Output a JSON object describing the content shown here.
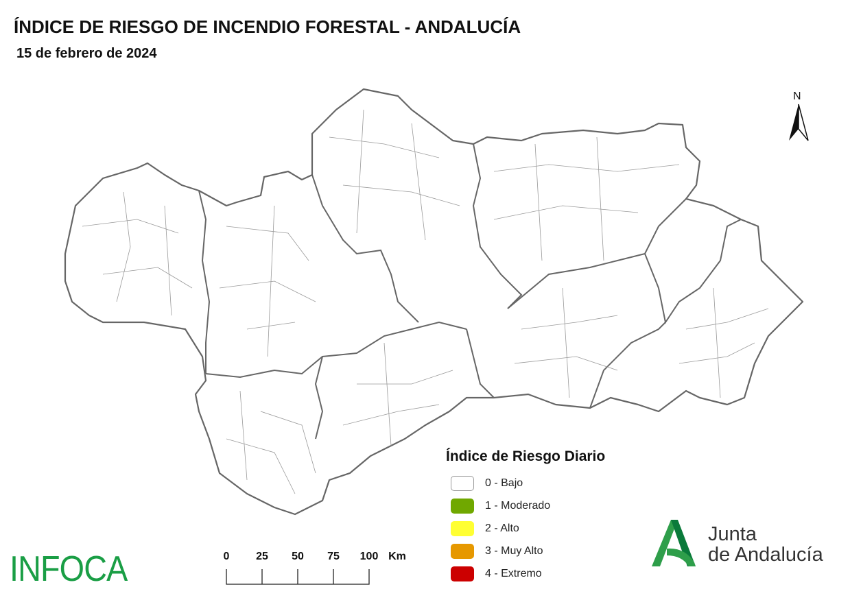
{
  "header": {
    "title": "ÍNDICE DE RIESGO DE INCENDIO FORESTAL - ANDALUCÍA",
    "date": "15 de febrero de 2024"
  },
  "north_arrow": {
    "label": "N",
    "icon": "north-arrow-icon"
  },
  "legend": {
    "title": "Índice de Riesgo Diario",
    "items": [
      {
        "label": "0 - Bajo",
        "color": "#ffffff"
      },
      {
        "label": "1 - Moderado",
        "color": "#70a800"
      },
      {
        "label": "2 - Alto",
        "color": "#ffff33"
      },
      {
        "label": "3 - Muy Alto",
        "color": "#e69800"
      },
      {
        "label": "4 - Extremo",
        "color": "#cc0000"
      }
    ]
  },
  "map": {
    "all_municipalities_level": "0 - Bajo",
    "outline_color": "#555555"
  },
  "scale_bar": {
    "ticks": [
      "0",
      "25",
      "50",
      "75",
      "100"
    ],
    "unit": "Km"
  },
  "logos": {
    "infoca": "INFOCA",
    "junta_line1": "Junta",
    "junta_line2": "de Andalucía",
    "brand_color": "#1a9e45"
  }
}
